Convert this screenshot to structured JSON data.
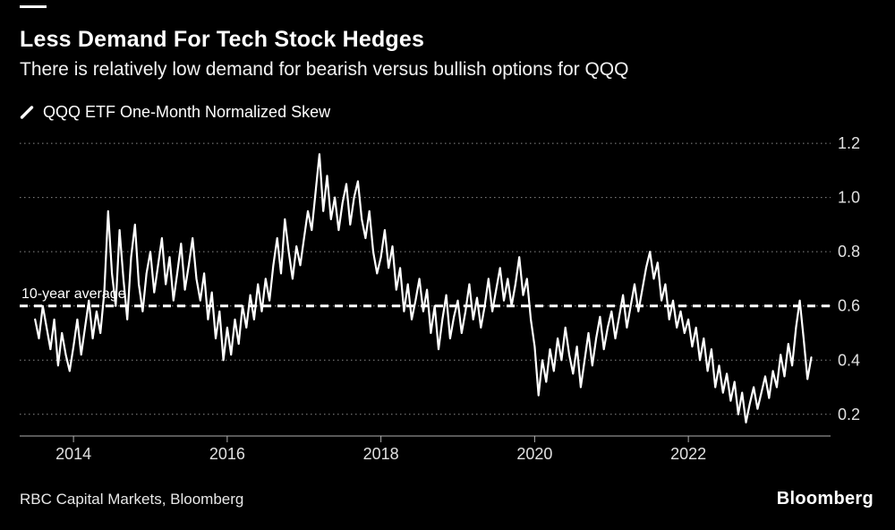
{
  "header": {
    "title": "Less Demand For Tech Stock Hedges",
    "subtitle": "There is relatively low demand for bearish versus bullish options for QQQ"
  },
  "legend": {
    "label": "QQQ ETF One-Month Normalized Skew"
  },
  "footer": {
    "source": "RBC Capital Markets, Bloomberg",
    "logo": "Bloomberg"
  },
  "colors": {
    "background": "#000000",
    "line": "#ffffff",
    "grid": "#8a8a8a",
    "axis": "#b0b0b0",
    "axis_text": "#e0e0e0",
    "average_line": "#ffffff"
  },
  "chart_data": {
    "type": "line",
    "title": "Less Demand For Tech Stock Hedges",
    "subtitle": "There is relatively low demand for bearish versus bullish options for QQQ",
    "legend": [
      "QQQ ETF One-Month Normalized Skew"
    ],
    "legend_position": "top-left",
    "grid": "dotted-horizontal",
    "xlim": [
      2013.3,
      2023.85
    ],
    "ylim": [
      0.12,
      1.24
    ],
    "xticks": [
      2014,
      2016,
      2018,
      2020,
      2022
    ],
    "yticks": [
      0.2,
      0.4,
      0.6,
      0.8,
      1.0,
      1.2
    ],
    "average_line": {
      "value": 0.6,
      "label": "10-year average"
    },
    "series": [
      {
        "name": "QQQ ETF One-Month Normalized Skew",
        "x_start": 2013.5,
        "x_step": 0.05,
        "values": [
          0.55,
          0.48,
          0.6,
          0.52,
          0.44,
          0.55,
          0.38,
          0.5,
          0.42,
          0.36,
          0.45,
          0.55,
          0.42,
          0.52,
          0.62,
          0.48,
          0.58,
          0.5,
          0.65,
          0.95,
          0.72,
          0.6,
          0.88,
          0.7,
          0.55,
          0.78,
          0.9,
          0.68,
          0.58,
          0.72,
          0.8,
          0.65,
          0.75,
          0.85,
          0.68,
          0.78,
          0.62,
          0.72,
          0.83,
          0.66,
          0.75,
          0.85,
          0.7,
          0.62,
          0.72,
          0.55,
          0.65,
          0.48,
          0.58,
          0.4,
          0.52,
          0.42,
          0.55,
          0.46,
          0.6,
          0.52,
          0.64,
          0.55,
          0.68,
          0.58,
          0.7,
          0.62,
          0.75,
          0.85,
          0.72,
          0.92,
          0.8,
          0.7,
          0.82,
          0.75,
          0.85,
          0.95,
          0.88,
          1.02,
          1.16,
          0.95,
          1.08,
          0.92,
          1.0,
          0.88,
          0.98,
          1.05,
          0.9,
          1.0,
          1.06,
          0.92,
          0.85,
          0.95,
          0.8,
          0.72,
          0.78,
          0.88,
          0.74,
          0.82,
          0.66,
          0.74,
          0.58,
          0.68,
          0.55,
          0.62,
          0.7,
          0.58,
          0.66,
          0.5,
          0.6,
          0.44,
          0.55,
          0.64,
          0.48,
          0.56,
          0.62,
          0.5,
          0.58,
          0.68,
          0.55,
          0.63,
          0.52,
          0.6,
          0.7,
          0.58,
          0.66,
          0.74,
          0.62,
          0.7,
          0.6,
          0.68,
          0.78,
          0.64,
          0.7,
          0.55,
          0.45,
          0.27,
          0.4,
          0.32,
          0.44,
          0.36,
          0.48,
          0.4,
          0.52,
          0.42,
          0.35,
          0.45,
          0.3,
          0.4,
          0.5,
          0.38,
          0.48,
          0.56,
          0.44,
          0.52,
          0.58,
          0.48,
          0.56,
          0.64,
          0.52,
          0.6,
          0.68,
          0.58,
          0.66,
          0.74,
          0.8,
          0.7,
          0.76,
          0.62,
          0.68,
          0.55,
          0.62,
          0.52,
          0.58,
          0.5,
          0.55,
          0.45,
          0.52,
          0.4,
          0.48,
          0.36,
          0.44,
          0.3,
          0.38,
          0.28,
          0.35,
          0.25,
          0.32,
          0.2,
          0.28,
          0.17,
          0.24,
          0.3,
          0.22,
          0.28,
          0.34,
          0.26,
          0.36,
          0.3,
          0.42,
          0.34,
          0.46,
          0.38,
          0.52,
          0.62,
          0.48,
          0.33,
          0.41
        ]
      }
    ]
  }
}
